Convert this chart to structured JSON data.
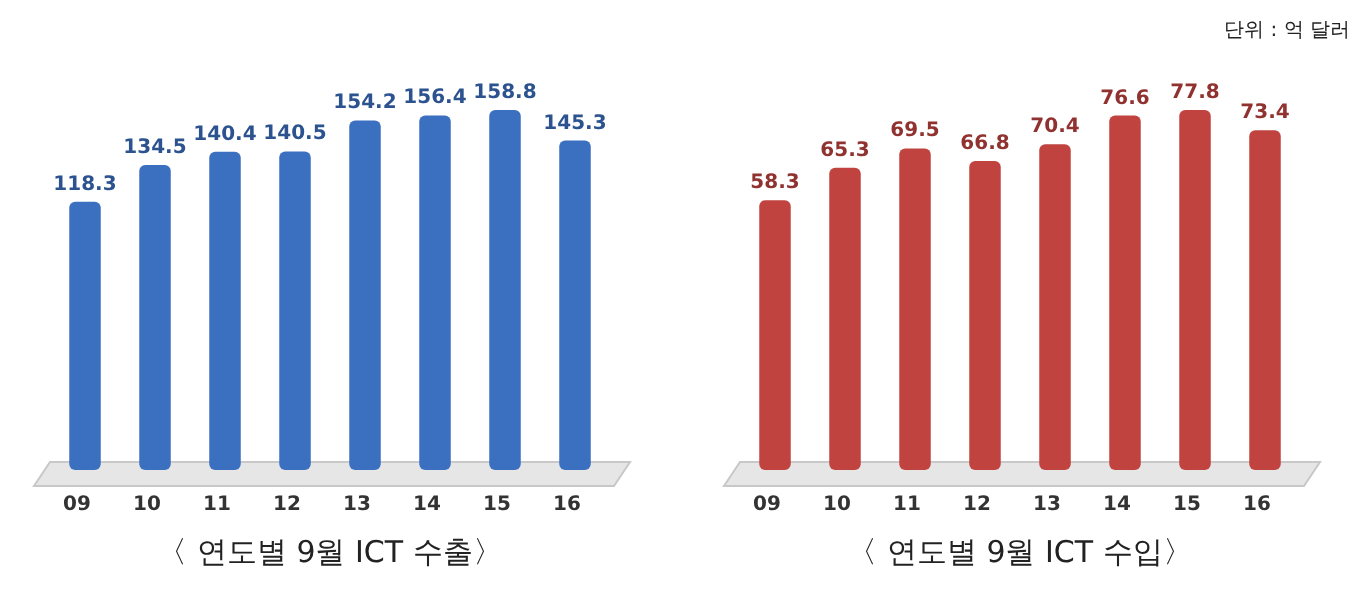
{
  "chart_data": [
    {
      "type": "bar",
      "title": "〈 연도별 9월 ICT 수출〉",
      "categories": [
        "09",
        "10",
        "11",
        "12",
        "13",
        "14",
        "15",
        "16"
      ],
      "series": [
        {
          "color": "#3b6fbf",
          "values": [
            118.3,
            134.5,
            140.4,
            140.5,
            154.2,
            156.4,
            158.8,
            145.3
          ]
        }
      ],
      "data_labels": true
    },
    {
      "type": "bar",
      "title": "〈 연도별 9월 ICT 수입〉",
      "annotations": [
        "단위 : 억 달러"
      ],
      "categories": [
        "09",
        "10",
        "11",
        "12",
        "13",
        "14",
        "15",
        "16"
      ],
      "series": [
        {
          "color": "#c0433f",
          "values": [
            58.3,
            65.3,
            69.5,
            66.8,
            70.4,
            76.6,
            77.8,
            73.4
          ]
        }
      ],
      "data_labels": true
    }
  ]
}
